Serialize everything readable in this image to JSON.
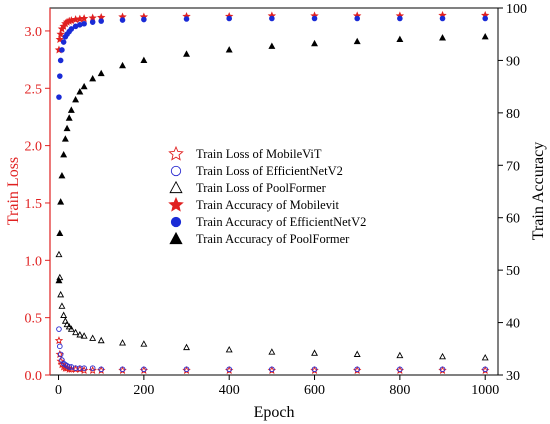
{
  "chart_data": {
    "type": "scatter",
    "xlabel": "Epoch",
    "ylabel_left": "Train Loss",
    "ylabel_right": "Train Accuracy",
    "xlim": [
      -20,
      1030
    ],
    "ylim_left": [
      0.0,
      3.2
    ],
    "ylim_right": [
      30,
      100
    ],
    "x_ticks": [
      0,
      200,
      400,
      600,
      800,
      1000
    ],
    "y_left_ticks": [
      0.0,
      0.5,
      1.0,
      1.5,
      2.0,
      2.5,
      3.0
    ],
    "y_right_ticks": [
      30,
      40,
      50,
      60,
      70,
      80,
      90,
      100
    ],
    "x_tick_labels": [
      "0",
      "200",
      "400",
      "600",
      "800",
      "1000"
    ],
    "y_left_tick_labels": [
      "0.0",
      "0.5",
      "1.0",
      "1.5",
      "2.0",
      "2.5",
      "3.0"
    ],
    "y_right_tick_labels": [
      "30",
      "40",
      "50",
      "60",
      "70",
      "80",
      "90",
      "100"
    ],
    "grid": false,
    "legend_position": "center",
    "colors": {
      "left_axis": "#e02020",
      "right_axis": "#000000"
    },
    "series": [
      {
        "name": "Train Loss of MobileViT",
        "axis": "left",
        "marker": "star-open",
        "color": "#e02020",
        "x": [
          1,
          3,
          5,
          8,
          12,
          16,
          20,
          25,
          30,
          40,
          50,
          60,
          80,
          100,
          150,
          200,
          300,
          400,
          500,
          600,
          700,
          800,
          900,
          1000
        ],
        "y": [
          0.3,
          0.18,
          0.12,
          0.09,
          0.07,
          0.06,
          0.06,
          0.05,
          0.05,
          0.05,
          0.05,
          0.04,
          0.04,
          0.04,
          0.04,
          0.04,
          0.04,
          0.04,
          0.04,
          0.04,
          0.04,
          0.04,
          0.04,
          0.04
        ]
      },
      {
        "name": "Train Loss of EfficientNetV2",
        "axis": "left",
        "marker": "circle-open",
        "color": "#2b2bd0",
        "x": [
          1,
          3,
          5,
          8,
          12,
          16,
          20,
          25,
          30,
          40,
          50,
          60,
          80,
          100,
          150,
          200,
          300,
          400,
          500,
          600,
          700,
          800,
          900,
          1000
        ],
        "y": [
          0.4,
          0.25,
          0.18,
          0.13,
          0.1,
          0.09,
          0.08,
          0.07,
          0.07,
          0.06,
          0.06,
          0.06,
          0.06,
          0.05,
          0.05,
          0.05,
          0.05,
          0.05,
          0.05,
          0.05,
          0.05,
          0.05,
          0.05,
          0.05
        ]
      },
      {
        "name": "Train Loss of PoolFormer",
        "axis": "left",
        "marker": "triangle-open",
        "color": "#000000",
        "x": [
          1,
          3,
          5,
          8,
          12,
          16,
          20,
          25,
          30,
          40,
          50,
          60,
          80,
          100,
          150,
          200,
          300,
          400,
          500,
          600,
          700,
          800,
          900,
          1000
        ],
        "y": [
          1.05,
          0.85,
          0.7,
          0.6,
          0.52,
          0.47,
          0.44,
          0.42,
          0.4,
          0.37,
          0.35,
          0.34,
          0.32,
          0.3,
          0.28,
          0.27,
          0.24,
          0.22,
          0.2,
          0.19,
          0.18,
          0.17,
          0.16,
          0.15
        ]
      },
      {
        "name": "Train Accuracy of Mobilevit",
        "axis": "right",
        "marker": "star-filled",
        "color": "#e02020",
        "x": [
          1,
          3,
          5,
          8,
          12,
          16,
          20,
          25,
          30,
          40,
          50,
          60,
          80,
          100,
          150,
          200,
          300,
          400,
          500,
          600,
          700,
          800,
          900,
          1000
        ],
        "y": [
          92.0,
          94.0,
          95.0,
          96.0,
          96.5,
          97.0,
          97.3,
          97.5,
          97.6,
          97.8,
          97.9,
          98.0,
          98.1,
          98.2,
          98.3,
          98.3,
          98.4,
          98.4,
          98.5,
          98.5,
          98.5,
          98.5,
          98.6,
          98.6
        ]
      },
      {
        "name": "Train Accuracy of EfficientNetV2",
        "axis": "right",
        "marker": "circle-filled",
        "color": "#1a2bd6",
        "x": [
          1,
          3,
          5,
          8,
          12,
          16,
          20,
          25,
          30,
          40,
          50,
          60,
          80,
          100,
          150,
          200,
          300,
          400,
          500,
          600,
          700,
          800,
          900,
          1000
        ],
        "y": [
          83.0,
          87.0,
          90.0,
          92.0,
          93.5,
          94.5,
          95.0,
          95.5,
          96.0,
          96.5,
          96.8,
          97.0,
          97.3,
          97.5,
          97.7,
          97.8,
          97.9,
          98.0,
          98.0,
          98.0,
          98.0,
          98.0,
          98.0,
          98.0
        ]
      },
      {
        "name": "Train Accuracy of PoolFormer",
        "axis": "right",
        "marker": "triangle-filled",
        "color": "#000000",
        "x": [
          1,
          3,
          5,
          8,
          12,
          16,
          20,
          25,
          30,
          40,
          50,
          60,
          80,
          100,
          150,
          200,
          300,
          400,
          500,
          600,
          700,
          800,
          900,
          1000
        ],
        "y": [
          48.0,
          57.0,
          63.0,
          68.0,
          72.0,
          75.0,
          77.0,
          79.0,
          80.5,
          82.5,
          84.0,
          85.0,
          86.5,
          87.5,
          89.0,
          90.0,
          91.2,
          92.0,
          92.7,
          93.2,
          93.6,
          94.0,
          94.3,
          94.5
        ]
      }
    ]
  }
}
